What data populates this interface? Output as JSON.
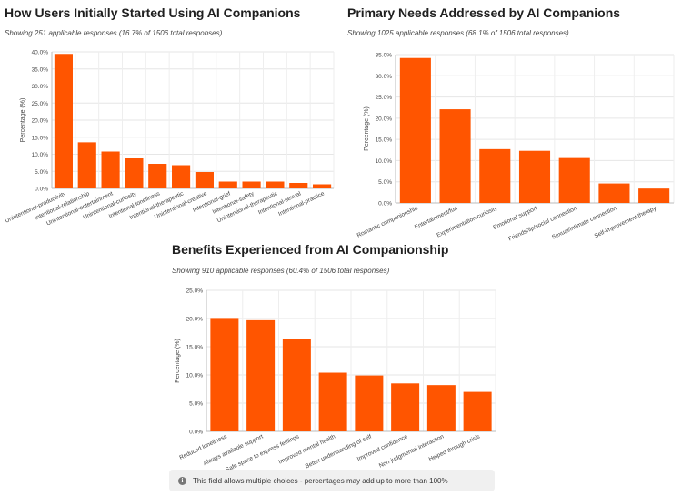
{
  "chart_data": [
    {
      "type": "bar",
      "title": "How Users Initially Started Using AI Companions",
      "subtitle": "Showing 251 applicable responses (16.7% of 1506 total responses)",
      "ylabel": "Percentage (%)",
      "xlabel": "",
      "ylim": [
        0,
        40
      ],
      "yticks": [
        0,
        5,
        10,
        15,
        20,
        25,
        30,
        35,
        40
      ],
      "categories": [
        "Unintentional-productivity",
        "Intentional-relationship",
        "Unintentional-entertainment",
        "Unintentional-curiosity",
        "Intentional-loneliness",
        "Intentional-therapeutic",
        "Unintentional-creative",
        "Intentional-grief",
        "Intentional-safety",
        "Unintentional-therapeutic",
        "Intentional-sexual",
        "Intentional-practice"
      ],
      "values": [
        39.4,
        13.5,
        10.8,
        8.8,
        7.2,
        6.8,
        4.8,
        2.0,
        2.0,
        2.0,
        1.6,
        1.2
      ],
      "bar_color": "#ff5500"
    },
    {
      "type": "bar",
      "title": "Primary Needs Addressed by AI Companions",
      "subtitle": "Showing 1025 applicable responses (68.1% of 1506 total responses)",
      "ylabel": "Percentage (%)",
      "xlabel": "",
      "ylim": [
        0,
        35
      ],
      "yticks": [
        0,
        5,
        10,
        15,
        20,
        25,
        30,
        35
      ],
      "categories": [
        "Romantic companionship",
        "Entertainment/fun",
        "Experimentation/curiosity",
        "Emotional support",
        "Friendship/social connection",
        "Sexual/intimate connection",
        "Self-improvement/therapy"
      ],
      "values": [
        34.2,
        22.1,
        12.7,
        12.3,
        10.6,
        4.6,
        3.4
      ],
      "bar_color": "#ff5500"
    },
    {
      "type": "bar",
      "title": "Benefits Experienced from AI Companionship",
      "subtitle": "Showing 910 applicable responses (60.4% of 1506 total responses)",
      "ylabel": "Percentage (%)",
      "xlabel": "",
      "ylim": [
        0,
        25
      ],
      "yticks": [
        0,
        5,
        10,
        15,
        20,
        25
      ],
      "categories": [
        "Reduced loneliness",
        "Always available support",
        "Safe space to express feelings",
        "Improved mental health",
        "Better understanding of self",
        "Improved confidence",
        "Non-judgmental interaction",
        "Helped through crisis"
      ],
      "values": [
        20.1,
        19.7,
        16.4,
        10.4,
        9.9,
        8.5,
        8.2,
        7.0
      ],
      "bar_color": "#ff5500"
    }
  ],
  "note": {
    "icon": "info-icon",
    "text": "This field allows multiple choices - percentages may add up to more than 100%"
  }
}
